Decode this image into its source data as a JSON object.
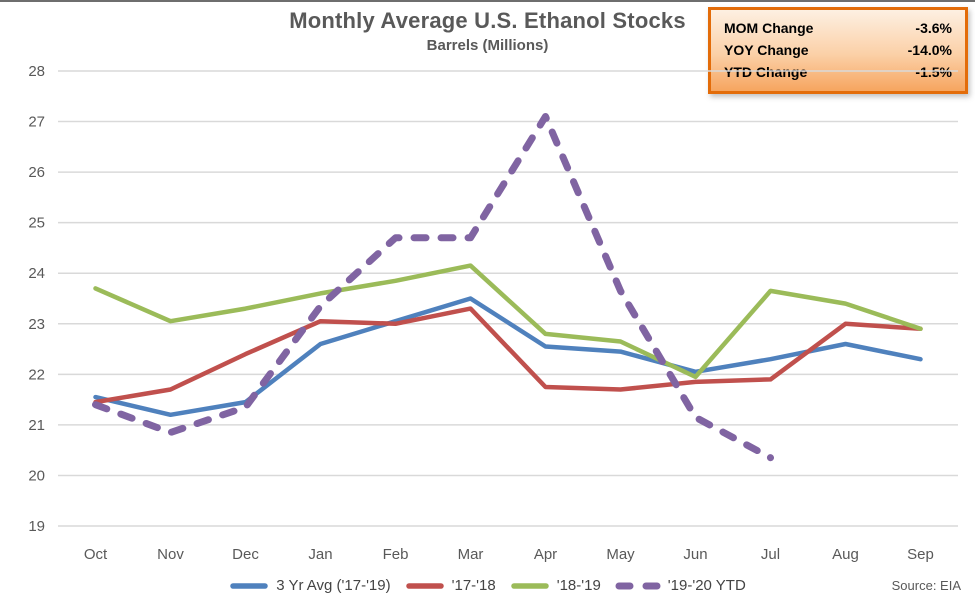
{
  "title": "Monthly Average U.S. Ethanol Stocks",
  "subtitle": "Barrels (Millions)",
  "stats_box": {
    "border_color": "#e36c09",
    "rows": [
      {
        "label": "MOM Change",
        "value": "-3.6%"
      },
      {
        "label": "YOY Change",
        "value": "-14.0%"
      },
      {
        "label": "YTD Change",
        "value": "-1.5%"
      }
    ]
  },
  "source": "Source: EIA",
  "chart_data": {
    "type": "line",
    "title": "Monthly Average U.S. Ethanol Stocks",
    "subtitle": "Barrels (Millions)",
    "categories": [
      "Oct",
      "Nov",
      "Dec",
      "Jan",
      "Feb",
      "Mar",
      "Apr",
      "May",
      "Jun",
      "Jul",
      "Aug",
      "Sep"
    ],
    "series": [
      {
        "name": "3 Yr Avg ('17-'19)",
        "color": "#4f81bd",
        "dashed": false,
        "values": [
          21.55,
          21.2,
          21.45,
          22.6,
          23.05,
          23.5,
          22.55,
          22.45,
          22.05,
          22.3,
          22.6,
          22.3
        ]
      },
      {
        "name": "'17-'18",
        "color": "#c0504d",
        "dashed": false,
        "values": [
          21.45,
          21.7,
          22.4,
          23.05,
          23.0,
          23.3,
          21.75,
          21.7,
          21.85,
          21.9,
          23.0,
          22.9
        ]
      },
      {
        "name": "'18-'19",
        "color": "#9bbb59",
        "dashed": false,
        "values": [
          23.7,
          23.05,
          23.3,
          23.6,
          23.85,
          24.15,
          22.8,
          22.65,
          21.95,
          23.65,
          23.4,
          22.9
        ]
      },
      {
        "name": "'19-'20 YTD",
        "color": "#8064a2",
        "dashed": true,
        "values": [
          21.4,
          20.85,
          21.35,
          23.35,
          24.7,
          24.7,
          27.1,
          23.65,
          21.15,
          20.35,
          null,
          null
        ]
      }
    ],
    "ylim": [
      19,
      28
    ],
    "ytick_step": 1,
    "grid": true,
    "gridline_color": "#d9d9d9",
    "axis_text_color": "#595959",
    "legend_position": "bottom"
  }
}
